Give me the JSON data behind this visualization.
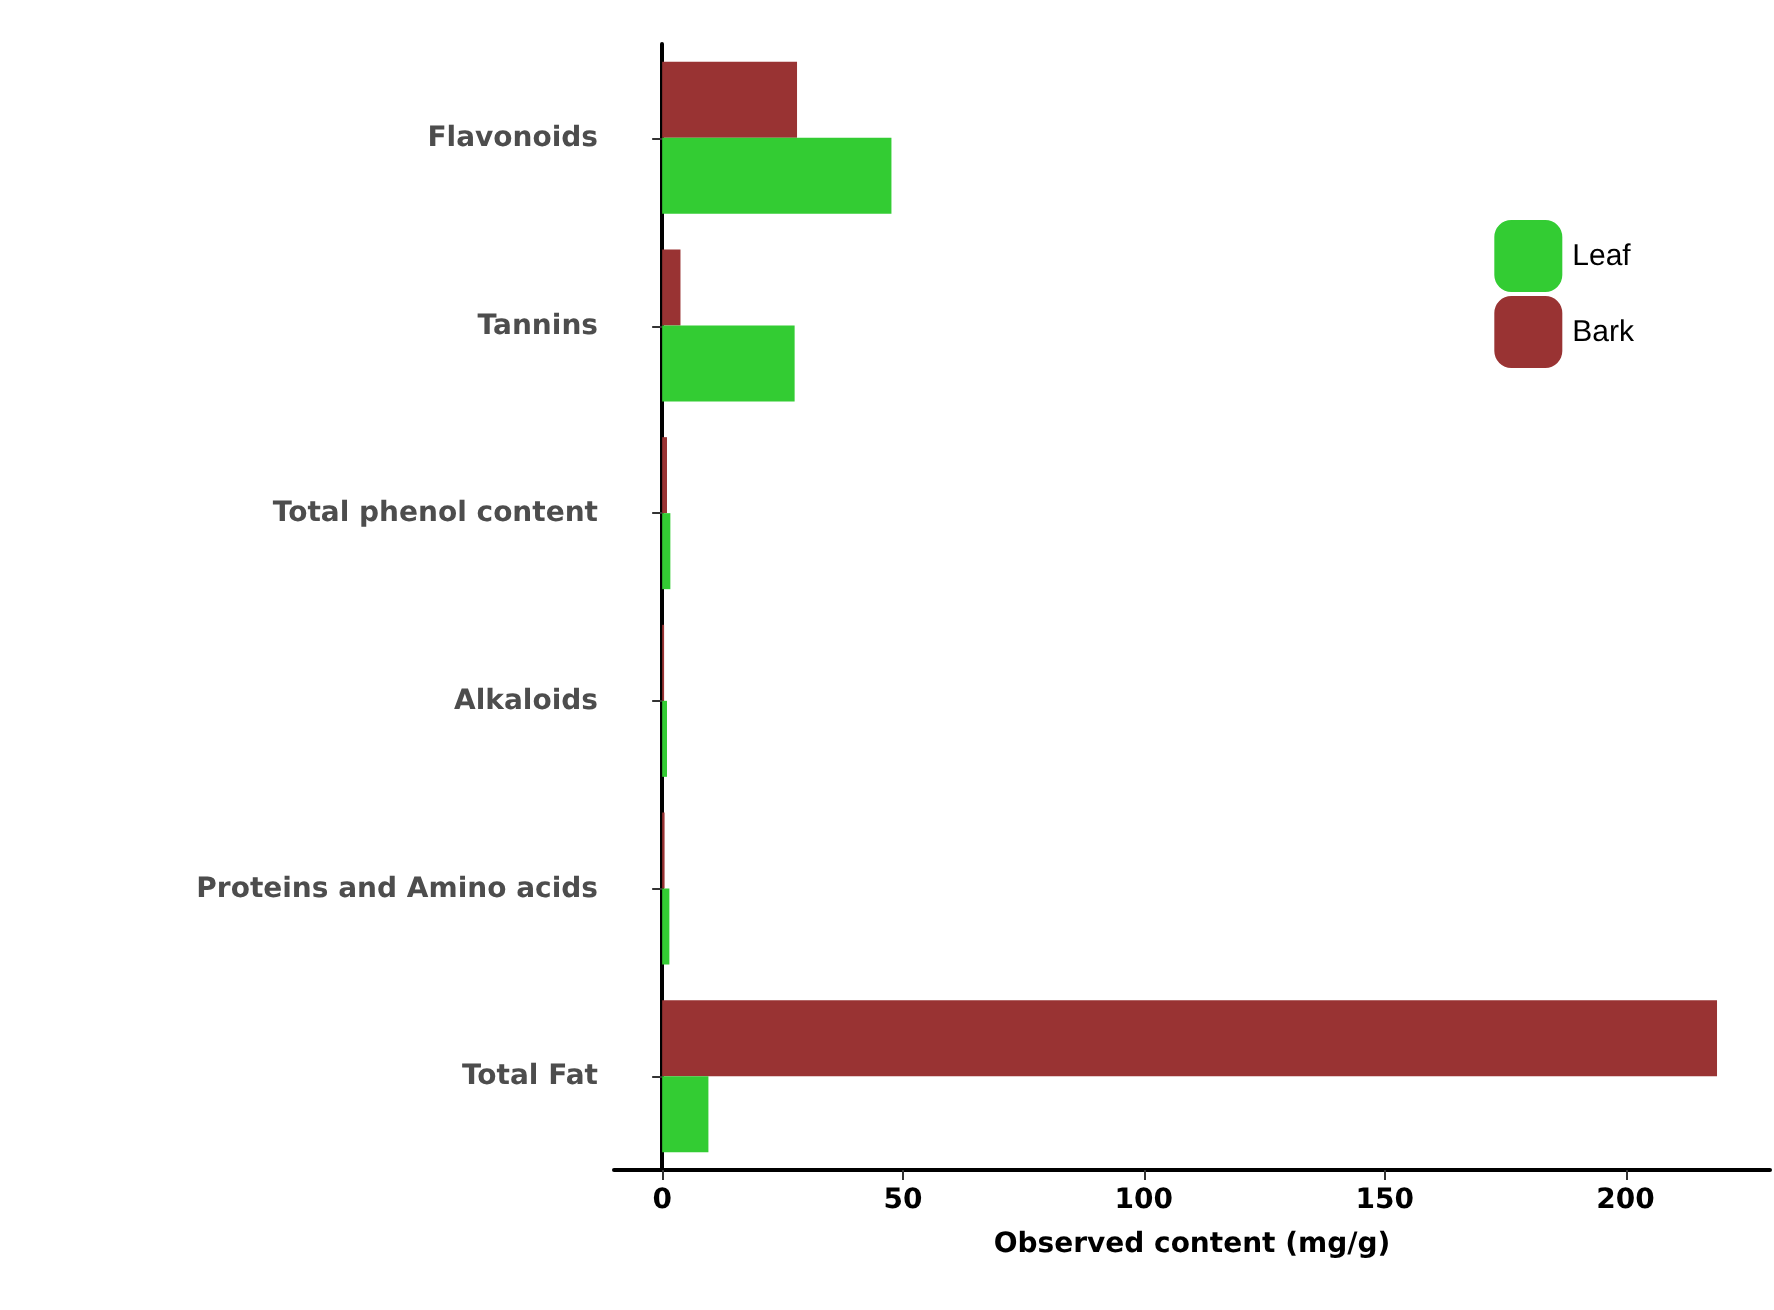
{
  "chart_data": {
    "type": "bar",
    "orientation": "horizontal",
    "xlabel": "Observed content (mg/g)",
    "categories": [
      "Flavonoids",
      "Tannins",
      "Total phenol content",
      "Alkaloids",
      "Proteins and Amino acids",
      "Total Fat"
    ],
    "series": [
      {
        "name": "Leaf",
        "color": "#33cc33",
        "values": [
          47.6,
          27.5,
          1.7,
          1,
          1.5,
          9.6
        ]
      },
      {
        "name": "Bark",
        "color": "#993333",
        "values": [
          28,
          3.8,
          1,
          0.4,
          0.5,
          219
        ]
      }
    ],
    "xlim": [
      -10,
      230
    ],
    "xticks": [
      0,
      50,
      100,
      150,
      200
    ],
    "grid": false,
    "legend": "top right"
  }
}
